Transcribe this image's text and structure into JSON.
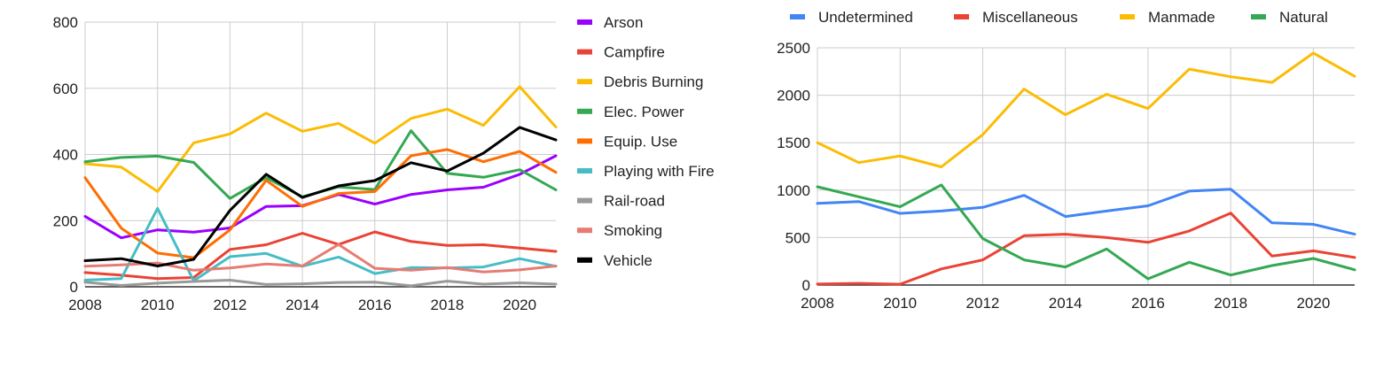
{
  "chart_data": [
    {
      "type": "line",
      "title": "",
      "xlabel": "",
      "ylabel": "",
      "x": [
        2008,
        2009,
        2010,
        2011,
        2012,
        2013,
        2014,
        2015,
        2016,
        2017,
        2018,
        2019,
        2020,
        2021
      ],
      "x_ticks": [
        "2008",
        "2010",
        "2012",
        "2014",
        "2016",
        "2018",
        "2020"
      ],
      "y_ticks": [
        "0",
        "200",
        "400",
        "600",
        "800"
      ],
      "ylim": [
        0,
        800
      ],
      "grid": true,
      "legend_position": "right",
      "series": [
        {
          "name": "Arson",
          "color": "#9900ff",
          "values": [
            213,
            148,
            172,
            165,
            178,
            243,
            245,
            279,
            250,
            279,
            293,
            301,
            340,
            396
          ]
        },
        {
          "name": "Campfire",
          "color": "#ea4335",
          "values": [
            43,
            35,
            25,
            28,
            113,
            127,
            162,
            128,
            166,
            137,
            125,
            127,
            117,
            107
          ]
        },
        {
          "name": "Debris Burning",
          "color": "#fbbc04",
          "values": [
            372,
            362,
            288,
            435,
            462,
            525,
            470,
            494,
            434,
            509,
            537,
            488,
            605,
            483
          ]
        },
        {
          "name": "Elec. Power",
          "color": "#34a853",
          "values": [
            378,
            391,
            395,
            376,
            267,
            330,
            272,
            302,
            294,
            472,
            343,
            331,
            354,
            293
          ]
        },
        {
          "name": "Equip. Use",
          "color": "#ff6d01",
          "values": [
            330,
            177,
            102,
            88,
            172,
            322,
            243,
            282,
            288,
            396,
            415,
            378,
            409,
            346
          ]
        },
        {
          "name": "Playing with Fire",
          "color": "#46bdc6",
          "values": [
            20,
            25,
            237,
            18,
            91,
            101,
            62,
            90,
            40,
            58,
            57,
            60,
            85,
            62
          ]
        },
        {
          "name": "Rail-road",
          "color": "#999999",
          "values": [
            14,
            4,
            11,
            16,
            20,
            7,
            9,
            13,
            14,
            3,
            17,
            8,
            12,
            8
          ]
        },
        {
          "name": "Smoking",
          "color": "#e67c73",
          "values": [
            62,
            66,
            72,
            50,
            57,
            69,
            63,
            128,
            56,
            50,
            58,
            45,
            51,
            63
          ]
        },
        {
          "name": "Vehicle",
          "color": "#000000",
          "values": [
            79,
            85,
            63,
            83,
            231,
            340,
            270,
            305,
            321,
            375,
            350,
            404,
            482,
            444
          ]
        }
      ]
    },
    {
      "type": "line",
      "title": "",
      "xlabel": "",
      "ylabel": "",
      "x": [
        2008,
        2009,
        2010,
        2011,
        2012,
        2013,
        2014,
        2015,
        2016,
        2017,
        2018,
        2019,
        2020,
        2021
      ],
      "x_ticks": [
        "2008",
        "2010",
        "2012",
        "2014",
        "2016",
        "2018",
        "2020"
      ],
      "y_ticks": [
        "0",
        "500",
        "1000",
        "1500",
        "2000",
        "2500"
      ],
      "ylim": [
        0,
        2500
      ],
      "grid": true,
      "legend_position": "top",
      "series": [
        {
          "name": "Undetermined",
          "color": "#4285f4",
          "values": [
            860,
            880,
            755,
            780,
            818,
            945,
            722,
            780,
            835,
            990,
            1010,
            655,
            640,
            535
          ]
        },
        {
          "name": "Miscellaneous",
          "color": "#ea4335",
          "values": [
            10,
            18,
            8,
            170,
            265,
            520,
            535,
            500,
            450,
            570,
            758,
            305,
            360,
            290
          ]
        },
        {
          "name": "Manmade",
          "color": "#fbbc04",
          "values": [
            1500,
            1290,
            1360,
            1245,
            1585,
            2065,
            1795,
            2010,
            1860,
            2275,
            2195,
            2135,
            2445,
            2200
          ]
        },
        {
          "name": "Natural",
          "color": "#34a853",
          "values": [
            1035,
            930,
            825,
            1055,
            490,
            265,
            190,
            380,
            65,
            240,
            105,
            205,
            280,
            160
          ]
        }
      ]
    }
  ]
}
